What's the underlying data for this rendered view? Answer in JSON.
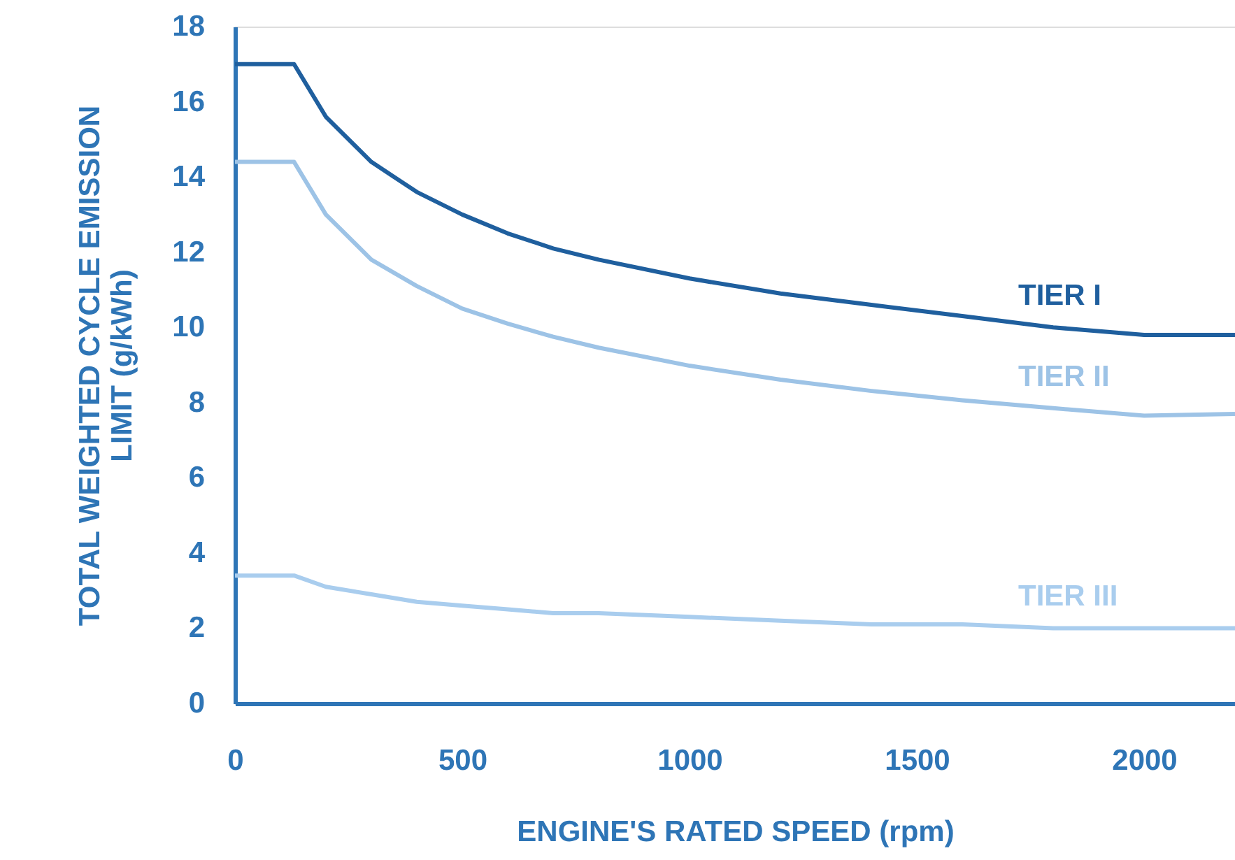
{
  "chart_data": {
    "type": "line",
    "xlabel": "ENGINE'S RATED SPEED (rpm)",
    "ylabel": "TOTAL WEIGHTED CYCLE EMISSION LIMIT (g/kWh)",
    "x": [
      0,
      130,
      200,
      300,
      400,
      500,
      600,
      700,
      800,
      1000,
      1200,
      1400,
      1600,
      1800,
      2000,
      2200
    ],
    "series": [
      {
        "name": "TIER I",
        "color": "#1f5f9e",
        "values": [
          17.0,
          17.0,
          15.6,
          14.4,
          13.6,
          13.0,
          12.5,
          12.1,
          11.8,
          11.3,
          10.9,
          10.6,
          10.3,
          10.0,
          9.8,
          9.8
        ]
      },
      {
        "name": "TIER II",
        "color": "#9dc3e6",
        "values": [
          14.4,
          14.4,
          13.0,
          11.8,
          11.1,
          10.5,
          10.1,
          9.75,
          9.46,
          8.98,
          8.61,
          8.31,
          8.06,
          7.85,
          7.65,
          7.7
        ]
      },
      {
        "name": "TIER III",
        "color": "#a9cdee",
        "values": [
          3.4,
          3.4,
          3.1,
          2.9,
          2.7,
          2.6,
          2.5,
          2.4,
          2.4,
          2.3,
          2.2,
          2.1,
          2.1,
          2.0,
          2.0,
          2.0
        ]
      }
    ],
    "xlim": [
      0,
      2200
    ],
    "xticks": [
      0,
      500,
      1000,
      1500,
      2000
    ],
    "ylim": [
      0,
      18
    ],
    "yticks": [
      0,
      2,
      4,
      6,
      8,
      10,
      12,
      14,
      16,
      18
    ],
    "grid": false,
    "marker": "none",
    "line_style": "solid"
  }
}
